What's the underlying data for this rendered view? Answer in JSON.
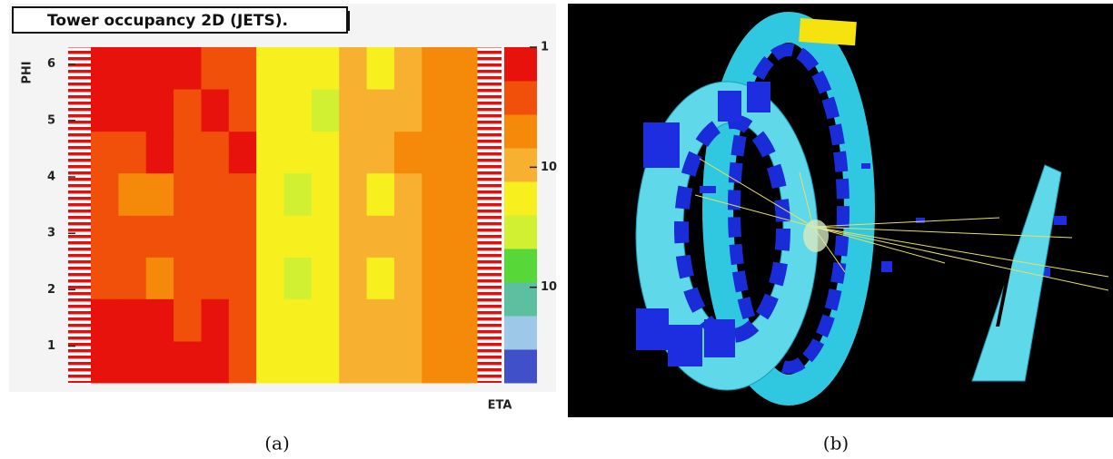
{
  "chart_data": {
    "type": "heatmap",
    "title": "Tower occupancy 2D (JETS).",
    "xlabel": "ETA",
    "ylabel": "PHI",
    "ylim": [
      0.35,
      6.3
    ],
    "yticks": [
      1,
      2,
      3,
      4,
      5,
      6
    ],
    "ybins": [
      0.35,
      1.09,
      1.84,
      2.58,
      3.32,
      4.07,
      4.81,
      5.56,
      6.3
    ],
    "z": [
      [
        0.7,
        0.7,
        0.7,
        0.7,
        0.7,
        0.4,
        0.06,
        0.06,
        0.06,
        0.11,
        0.11,
        0.11,
        0.2,
        0.2
      ],
      [
        0.7,
        0.7,
        0.7,
        0.4,
        0.7,
        0.4,
        0.06,
        0.06,
        0.06,
        0.11,
        0.11,
        0.11,
        0.2,
        0.2
      ],
      [
        0.4,
        0.4,
        0.2,
        0.4,
        0.4,
        0.4,
        0.06,
        0.035,
        0.06,
        0.11,
        0.06,
        0.11,
        0.2,
        0.2
      ],
      [
        0.4,
        0.4,
        0.4,
        0.4,
        0.4,
        0.4,
        0.06,
        0.06,
        0.06,
        0.11,
        0.11,
        0.11,
        0.2,
        0.2
      ],
      [
        0.4,
        0.2,
        0.2,
        0.4,
        0.4,
        0.4,
        0.06,
        0.035,
        0.06,
        0.11,
        0.06,
        0.11,
        0.2,
        0.2
      ],
      [
        0.4,
        0.4,
        0.7,
        0.4,
        0.4,
        0.7,
        0.06,
        0.06,
        0.06,
        0.11,
        0.11,
        0.2,
        0.2,
        0.2
      ],
      [
        0.7,
        0.7,
        0.7,
        0.4,
        0.7,
        0.4,
        0.06,
        0.06,
        0.035,
        0.11,
        0.11,
        0.11,
        0.2,
        0.2
      ],
      [
        0.7,
        0.7,
        0.7,
        0.7,
        0.4,
        0.4,
        0.06,
        0.06,
        0.06,
        0.11,
        0.06,
        0.11,
        0.2,
        0.2
      ]
    ],
    "zlim": [
      0.0016,
      1
    ],
    "log_z": true,
    "zticks": [
      1,
      {
        "value": 0.1,
        "label": "10"
      },
      {
        "value": 0.01,
        "label": "10"
      }
    ],
    "colors": [
      "#4050c8",
      "#9ec8e8",
      "#5cc0a0",
      "#58d838",
      "#d2f032",
      "#f7f01e",
      "#f8b030",
      "#f58a0a",
      "#f0500a",
      "#e8120c"
    ]
  },
  "captions": [
    "(a)",
    "(b)"
  ]
}
